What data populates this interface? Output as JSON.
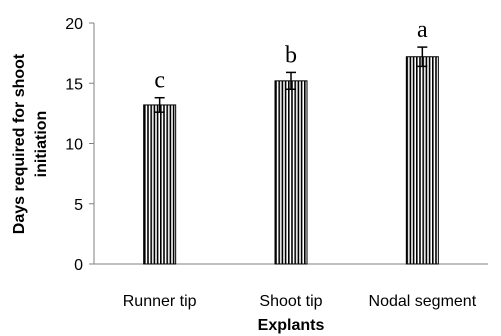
{
  "chart_data": {
    "type": "bar",
    "categories": [
      "Runner tip",
      "Shoot tip",
      "Nodal segment"
    ],
    "values": [
      13.2,
      15.2,
      17.2
    ],
    "errors": [
      0.6,
      0.7,
      0.8
    ],
    "data_labels": [
      "c",
      "b",
      "a"
    ],
    "xlabel": "Explants",
    "ylabel_lines": [
      "Days required for shoot",
      "initiation"
    ],
    "ylim": [
      0,
      20
    ],
    "yticks": [
      "0",
      "5",
      "10",
      "15",
      "20"
    ],
    "grid": false,
    "legend": "none",
    "bar_style": "vertical-stripes",
    "colors": {
      "stroke": "#000000",
      "fill_stripe": "#000000",
      "fill_bg": "#ffffff",
      "axis": "#808080"
    }
  }
}
